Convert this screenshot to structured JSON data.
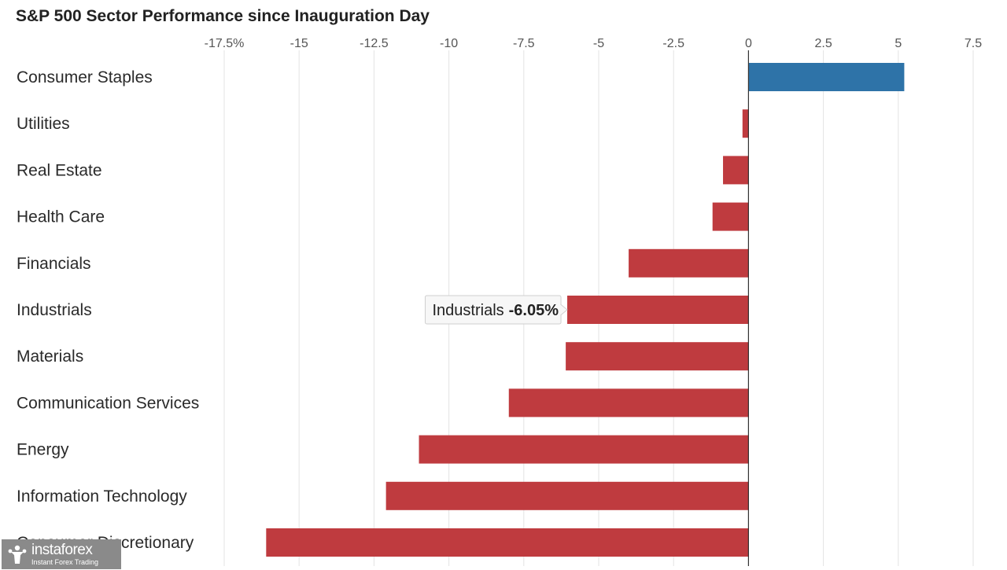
{
  "chart_data": {
    "type": "bar",
    "orientation": "horizontal",
    "title": "S&P 500 Sector Performance since Inauguration Day",
    "categories": [
      "Consumer Staples",
      "Utilities",
      "Real Estate",
      "Health Care",
      "Financials",
      "Industrials",
      "Materials",
      "Communication Services",
      "Energy",
      "Information Technology",
      "Consumer Discretionary"
    ],
    "values": [
      5.2,
      -0.2,
      -0.85,
      -1.2,
      -4.0,
      -6.05,
      -6.1,
      -8.0,
      -11.0,
      -12.1,
      -16.1
    ],
    "xlim": [
      -17.5,
      7.5
    ],
    "ticks": [
      -17.5,
      -15,
      -12.5,
      -10,
      -7.5,
      -5,
      -2.5,
      0,
      2.5,
      5,
      7.5
    ],
    "tick_labels": [
      "-17.5%",
      "-15",
      "-12.5",
      "-10",
      "-7.5",
      "-5",
      "-2.5",
      "0",
      "2.5",
      "5",
      "7.5"
    ],
    "grid": true,
    "colors": {
      "positive": "#2e73a8",
      "negative": "#bf3b3f"
    },
    "tooltip": {
      "category": "Industrials",
      "label": "Industrials",
      "value_label": "-6.05%"
    }
  },
  "watermark": {
    "brand": "instaforex",
    "tagline": "Instant Forex Trading",
    "icon": "instaforex-logo-icon"
  }
}
